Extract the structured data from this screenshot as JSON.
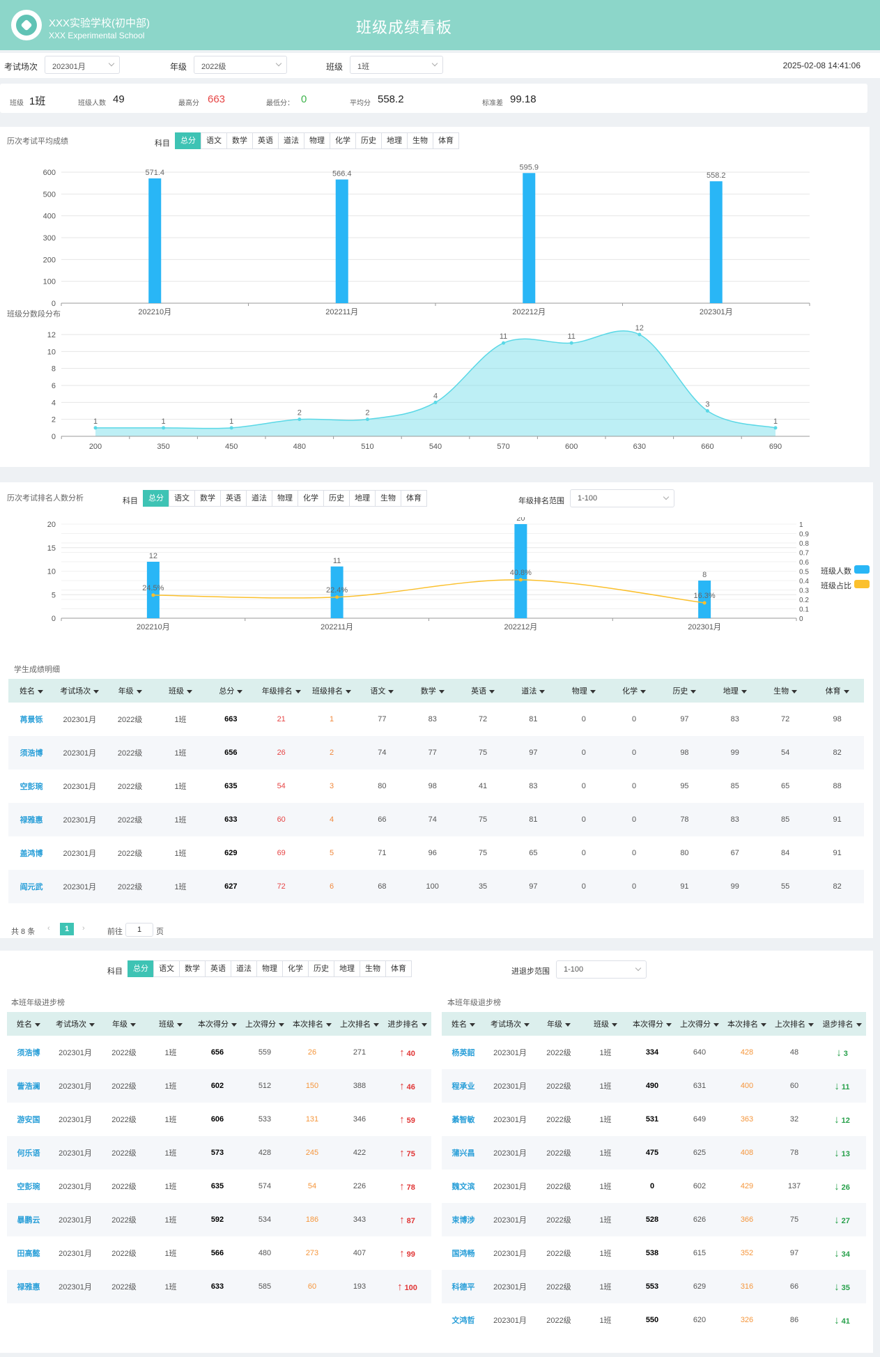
{
  "header": {
    "school_name": "XXX实验学校(初中部)",
    "school_en": "XXX Experimental School",
    "title": "班级成绩看板"
  },
  "filters": {
    "exam_label": "考试场次",
    "exam_value": "202301月",
    "grade_label": "年级",
    "grade_value": "2022级",
    "class_label": "班级",
    "class_value": "1班",
    "datetime": "2025-02-08 14:41:06"
  },
  "stats": {
    "class_label": "班级",
    "class_value": "1班",
    "count_label": "班级人数",
    "count_value": "49",
    "max_label": "最高分",
    "max_value": "663",
    "min_label": "最低分：",
    "min_value": "0",
    "avg_label": "平均分",
    "avg_value": "558.2",
    "std_label": "标准差",
    "std_value": "99.18"
  },
  "subjects": [
    "总分",
    "语文",
    "数学",
    "英语",
    "道法",
    "物理",
    "化学",
    "历史",
    "地理",
    "生物",
    "体育"
  ],
  "subject_label": "科目",
  "colors": {
    "accent": "#3ec3b4",
    "bar": "#29b6f6",
    "line": "#fbc02d",
    "area": "#5ad8e6"
  },
  "chart_data": [
    {
      "type": "bar",
      "title": "历次考试平均成绩",
      "categories": [
        "202210月",
        "202211月",
        "202212月",
        "202301月"
      ],
      "values": [
        571.4,
        566.4,
        595.9,
        558.2
      ],
      "value_labels": [
        "571.4",
        "566.4",
        "595.9",
        "558.2"
      ],
      "ylim": [
        0,
        600
      ],
      "yticks": [
        0,
        100,
        200,
        300,
        400,
        500,
        600
      ]
    },
    {
      "type": "area",
      "title": "班级分数段分布",
      "categories": [
        "200",
        "350",
        "450",
        "480",
        "510",
        "540",
        "570",
        "600",
        "630",
        "660",
        "690"
      ],
      "values": [
        1,
        1,
        1,
        2,
        2,
        4,
        11,
        11,
        12,
        3,
        1
      ],
      "ylim": [
        0,
        12
      ],
      "yticks": [
        0,
        2,
        4,
        6,
        8,
        10,
        12
      ]
    },
    {
      "type": "bar",
      "title": "历次考试排名人数分析",
      "categories": [
        "202210月",
        "202211月",
        "202212月",
        "202301月"
      ],
      "series": [
        {
          "name": "班级人数",
          "values": [
            12,
            11,
            20,
            8
          ]
        },
        {
          "name": "班级占比",
          "values": [
            0.245,
            0.224,
            0.408,
            0.163
          ],
          "labels": [
            "24.5%",
            "22.4%",
            "40.8%",
            "16.3%"
          ]
        }
      ],
      "ylim": [
        0,
        20
      ],
      "yticks": [
        0,
        5,
        10,
        15,
        20
      ],
      "y2lim": [
        0,
        1
      ],
      "y2ticks": [
        "0",
        "0.1",
        "0.2",
        "0.3",
        "0.4",
        "0.5",
        "0.6",
        "0.7",
        "0.8",
        "0.9",
        "1"
      ],
      "range_label": "年级排名范围",
      "range_value": "1-100"
    }
  ],
  "detail": {
    "title": "学生成绩明细",
    "columns": [
      "姓名",
      "考试场次",
      "年级",
      "班级",
      "总分",
      "年级排名",
      "班级排名",
      "语文",
      "数学",
      "英语",
      "道法",
      "物理",
      "化学",
      "历史",
      "地理",
      "生物",
      "体育"
    ],
    "rows": [
      [
        "苒景铄",
        "202301月",
        "2022级",
        "1班",
        "663",
        "21",
        "1",
        "77",
        "83",
        "72",
        "81",
        "0",
        "0",
        "97",
        "83",
        "72",
        "98"
      ],
      [
        "须浩博",
        "202301月",
        "2022级",
        "1班",
        "656",
        "26",
        "2",
        "74",
        "77",
        "75",
        "97",
        "0",
        "0",
        "98",
        "99",
        "54",
        "82"
      ],
      [
        "空彭琬",
        "202301月",
        "2022级",
        "1班",
        "635",
        "54",
        "3",
        "80",
        "98",
        "41",
        "83",
        "0",
        "0",
        "95",
        "85",
        "65",
        "88"
      ],
      [
        "禄雅惠",
        "202301月",
        "2022级",
        "1班",
        "633",
        "60",
        "4",
        "66",
        "74",
        "75",
        "81",
        "0",
        "0",
        "78",
        "83",
        "85",
        "91"
      ],
      [
        "盖鸿博",
        "202301月",
        "2022级",
        "1班",
        "629",
        "69",
        "5",
        "71",
        "96",
        "75",
        "65",
        "0",
        "0",
        "80",
        "67",
        "84",
        "91"
      ],
      [
        "阎元武",
        "202301月",
        "2022级",
        "1班",
        "627",
        "72",
        "6",
        "68",
        "100",
        "35",
        "97",
        "0",
        "0",
        "91",
        "99",
        "55",
        "82"
      ]
    ],
    "pager": {
      "total": "共 8 条",
      "page": "1",
      "goto": "前往",
      "goto_value": "1",
      "suffix": "页"
    }
  },
  "progress": {
    "range_label": "进退步范围",
    "range_value": "1-100",
    "up": {
      "title": "本班年级进步榜",
      "columns": [
        "姓名",
        "考试场次",
        "年级",
        "班级",
        "本次得分",
        "上次得分",
        "本次排名",
        "上次排名",
        "进步排名"
      ],
      "rows": [
        [
          "须浩博",
          "202301月",
          "2022级",
          "1班",
          "656",
          "559",
          "26",
          "271",
          "40"
        ],
        [
          "訾浩澜",
          "202301月",
          "2022级",
          "1班",
          "602",
          "512",
          "150",
          "388",
          "46"
        ],
        [
          "游安国",
          "202301月",
          "2022级",
          "1班",
          "606",
          "533",
          "131",
          "346",
          "59"
        ],
        [
          "何乐语",
          "202301月",
          "2022级",
          "1班",
          "573",
          "428",
          "245",
          "422",
          "75"
        ],
        [
          "空彭琬",
          "202301月",
          "2022级",
          "1班",
          "635",
          "574",
          "54",
          "226",
          "78"
        ],
        [
          "暴鹏云",
          "202301月",
          "2022级",
          "1班",
          "592",
          "534",
          "186",
          "343",
          "87"
        ],
        [
          "田高懿",
          "202301月",
          "2022级",
          "1班",
          "566",
          "480",
          "273",
          "407",
          "99"
        ],
        [
          "禄雅惠",
          "202301月",
          "2022级",
          "1班",
          "633",
          "585",
          "60",
          "193",
          "100"
        ]
      ]
    },
    "down": {
      "title": "本班年级退步榜",
      "columns": [
        "姓名",
        "考试场次",
        "年级",
        "班级",
        "本次得分",
        "上次得分",
        "本次排名",
        "上次排名",
        "退步排名"
      ],
      "rows": [
        [
          "杨英韶",
          "202301月",
          "2022级",
          "1班",
          "334",
          "640",
          "428",
          "48",
          "3"
        ],
        [
          "程承业",
          "202301月",
          "2022级",
          "1班",
          "490",
          "631",
          "400",
          "60",
          "11"
        ],
        [
          "綦智敏",
          "202301月",
          "2022级",
          "1班",
          "531",
          "649",
          "363",
          "32",
          "12"
        ],
        [
          "蒲兴昌",
          "202301月",
          "2022级",
          "1班",
          "475",
          "625",
          "408",
          "78",
          "13"
        ],
        [
          "魏文滨",
          "202301月",
          "2022级",
          "1班",
          "0",
          "602",
          "429",
          "137",
          "26"
        ],
        [
          "束博涉",
          "202301月",
          "2022级",
          "1班",
          "528",
          "626",
          "366",
          "75",
          "27"
        ],
        [
          "国鸿畅",
          "202301月",
          "2022级",
          "1班",
          "538",
          "615",
          "352",
          "97",
          "34"
        ],
        [
          "科德平",
          "202301月",
          "2022级",
          "1班",
          "553",
          "629",
          "316",
          "66",
          "35"
        ],
        [
          "文鸿哲",
          "202301月",
          "2022级",
          "1班",
          "550",
          "620",
          "326",
          "86",
          "41"
        ]
      ]
    }
  }
}
